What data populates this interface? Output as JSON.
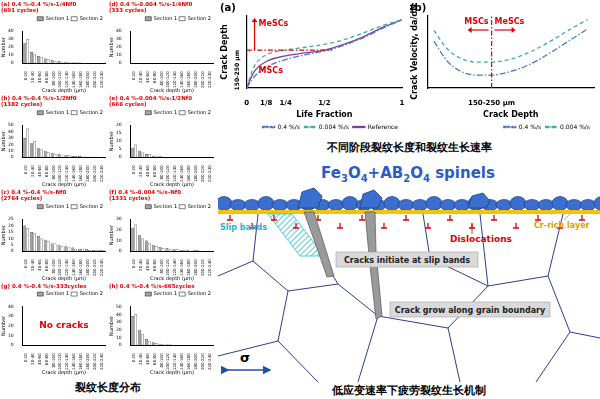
{
  "chart_data": [
    {
      "type": "bar",
      "title": "(a) 0.4 %-0.4 %/s-1/4Nf0",
      "subtitle": "(691 cycles)",
      "x_label": "Crack depth (μm)",
      "y_label": "Number",
      "categories": [
        "0-20",
        "20-40",
        "40-60",
        "60-80",
        "80-100",
        "100-120",
        "120-140",
        "140-160",
        "160-180",
        "180-200",
        "200-220",
        "220-240"
      ],
      "series": [
        {
          "name": "Section 1",
          "color": "#a6a6a6",
          "values": [
            25,
            14,
            9,
            6,
            4,
            3,
            2,
            1,
            1,
            0,
            0,
            0
          ]
        },
        {
          "name": "Section 2",
          "color": "#ffffff",
          "values": [
            30,
            12,
            8,
            5,
            3,
            2,
            1,
            1,
            0,
            0,
            0,
            0
          ]
        }
      ],
      "ylim": [
        0,
        40
      ],
      "yticks": [
        0,
        10,
        20,
        30,
        40
      ],
      "legend": "upper right"
    },
    {
      "type": "bar",
      "title": "(d) 0.4 %-0.004 %/s-1/4Nf0",
      "subtitle": "(333 cycles)",
      "x_label": "Crack depth (μm)",
      "y_label": "Number",
      "categories": [
        "0-20",
        "20-40",
        "40-60",
        "60-80",
        "80-100",
        "100-120",
        "120-140",
        "140-160",
        "160-180",
        "180-200",
        "200-220",
        "220-240"
      ],
      "series": [
        {
          "name": "Section 1",
          "color": "#a6a6a6",
          "values": [
            0,
            0,
            0,
            0,
            0,
            0,
            0,
            0,
            0,
            0,
            0,
            0
          ]
        },
        {
          "name": "Section 2",
          "color": "#ffffff",
          "values": [
            0,
            0,
            0,
            0,
            0,
            0,
            0,
            0,
            0,
            0,
            0,
            0
          ]
        }
      ],
      "ylim": [
        0,
        40
      ],
      "yticks": [
        0,
        10,
        20,
        30,
        40
      ],
      "legend": "upper right"
    },
    {
      "type": "bar",
      "title": "(b) 0.4 %-0.4 %/s-1/2Nf0",
      "subtitle": "(1382 cycles)",
      "x_label": "Crack depth (μm)",
      "y_label": "Number",
      "categories": [
        "0-20",
        "20-40",
        "40-60",
        "60-80",
        "80-100",
        "100-120",
        "120-140",
        "140-160",
        "160-180",
        "180-200",
        "200-220",
        "220-240"
      ],
      "series": [
        {
          "name": "Section 1",
          "color": "#a6a6a6",
          "values": [
            30,
            22,
            14,
            10,
            7,
            5,
            3,
            2,
            2,
            1,
            1,
            0
          ]
        },
        {
          "name": "Section 2",
          "color": "#ffffff",
          "values": [
            45,
            25,
            12,
            8,
            5,
            4,
            3,
            2,
            1,
            1,
            0,
            1
          ]
        }
      ],
      "ylim": [
        0,
        50
      ],
      "yticks": [
        0,
        10,
        20,
        30,
        40,
        50
      ],
      "legend": "upper right"
    },
    {
      "type": "bar",
      "title": "(e) 0.4 %-0.004 %/s-1/2Nf0",
      "subtitle": "(666 cycles)",
      "x_label": "Crack depth (μm)",
      "y_label": "Number",
      "categories": [
        "0-20",
        "20-40",
        "40-60",
        "60-80",
        "80-100",
        "100-120",
        "120-140",
        "140-160",
        "160-180",
        "180-200",
        "200-220",
        "220-240"
      ],
      "series": [
        {
          "name": "Section 1",
          "color": "#a6a6a6",
          "values": [
            6,
            4,
            2,
            1,
            1,
            0,
            0,
            0,
            0,
            0,
            0,
            0
          ]
        },
        {
          "name": "Section 2",
          "color": "#ffffff",
          "values": [
            8,
            3,
            2,
            1,
            0,
            0,
            0,
            0,
            0,
            0,
            0,
            0
          ]
        }
      ],
      "ylim": [
        0,
        20
      ],
      "yticks": [
        0,
        5,
        10,
        15,
        20
      ],
      "legend": "upper right"
    },
    {
      "type": "bar",
      "title": "(c) 0.4 %-0.4 %/s-Nf0",
      "subtitle": "(2764 cycles)",
      "x_label": "Crack depth (μm)",
      "y_label": "Number",
      "categories": [
        "0-20",
        "20-40",
        "40-60",
        "60-80",
        "80-100",
        "100-120",
        "120-140",
        "140-160",
        "160-180",
        "180-200",
        "200-220",
        "220-240"
      ],
      "series": [
        {
          "name": "Section 1",
          "color": "#a6a6a6",
          "values": [
            20,
            15,
            12,
            9,
            6,
            5,
            4,
            3,
            2,
            2,
            1,
            1
          ]
        },
        {
          "name": "Section 2",
          "color": "#ffffff",
          "values": [
            18,
            14,
            10,
            8,
            6,
            4,
            3,
            2,
            2,
            1,
            1,
            1
          ]
        }
      ],
      "ylim": [
        0,
        25
      ],
      "yticks": [
        0,
        5,
        10,
        15,
        20,
        25
      ],
      "legend": "upper right"
    },
    {
      "type": "bar",
      "title": "(f) 0.4 %-0.004 %/s-Nf0",
      "subtitle": "(1331 cycles)",
      "x_label": "Crack depth (μm)",
      "y_label": "Number",
      "categories": [
        "0-20",
        "20-40",
        "40-60",
        "60-80",
        "80-100",
        "100-120",
        "120-140",
        "140-160",
        "160-180",
        "180-200",
        "200-220",
        "220-240"
      ],
      "series": [
        {
          "name": "Section 1",
          "color": "#a6a6a6",
          "values": [
            22,
            15,
            10,
            6,
            4,
            3,
            2,
            1,
            1,
            1,
            0,
            0
          ]
        },
        {
          "name": "Section 2",
          "color": "#ffffff",
          "values": [
            25,
            12,
            8,
            5,
            3,
            2,
            2,
            1,
            0,
            1,
            0,
            0
          ]
        }
      ],
      "ylim": [
        0,
        30
      ],
      "yticks": [
        0,
        10,
        20,
        30
      ],
      "legend": "upper right"
    },
    {
      "type": "bar",
      "title": "(g) 0.4 %-0.4 %/s-333cycles",
      "x_label": "Crack depth (μm)",
      "y_label": "Number",
      "annotations": [
        "No cracks"
      ],
      "categories": [
        "0-20",
        "20-40",
        "40-60",
        "60-80",
        "80-100",
        "100-120",
        "120-140",
        "140-160",
        "160-180",
        "180-200",
        "200-220",
        "220-240"
      ],
      "series": [
        {
          "name": "Section 1",
          "color": "#a6a6a6",
          "values": [
            0,
            0,
            0,
            0,
            0,
            0,
            0,
            0,
            0,
            0,
            0,
            0
          ]
        },
        {
          "name": "Section 2",
          "color": "#ffffff",
          "values": [
            0,
            0,
            0,
            0,
            0,
            0,
            0,
            0,
            0,
            0,
            0,
            0
          ]
        }
      ],
      "ylim": [
        0,
        40
      ],
      "yticks": [
        0,
        10,
        20,
        30,
        40
      ],
      "legend": "upper right"
    },
    {
      "type": "bar",
      "title": "(h) 0.4 %-0.4 %/s-665cycles",
      "x_label": "Crack depth (μm)",
      "y_label": "Number",
      "categories": [
        "0-20",
        "20-40",
        "40-60",
        "60-80",
        "80-100",
        "100-120",
        "120-140",
        "140-160",
        "160-180",
        "180-200",
        "200-220",
        "220-240"
      ],
      "series": [
        {
          "name": "Section 1",
          "color": "#a6a6a6",
          "values": [
            38,
            20,
            8,
            4,
            2,
            1,
            0,
            0,
            0,
            0,
            0,
            0
          ]
        },
        {
          "name": "Section 2",
          "color": "#ffffff",
          "values": [
            40,
            15,
            6,
            3,
            1,
            1,
            0,
            0,
            0,
            0,
            0,
            0
          ]
        }
      ],
      "ylim": [
        0,
        50
      ],
      "yticks": [
        0,
        10,
        20,
        30,
        40,
        50
      ],
      "legend": "upper right"
    },
    {
      "type": "line",
      "title": "(a)",
      "x_label": "Life Fraction",
      "y_label": "Crack Depth",
      "annotations": [
        "MeSCs",
        "MSCs"
      ],
      "x": [
        0,
        0.03,
        0.06,
        0.125,
        0.25,
        0.375,
        0.5,
        0.625,
        0.75,
        0.875,
        1
      ],
      "series": [
        {
          "name": "0.4 %/s",
          "color": "#4a78c8",
          "line_style": "dashdot",
          "marker": "none",
          "values": [
            0,
            40,
            70,
            110,
            150,
            175,
            195,
            225,
            265,
            315,
            360
          ]
        },
        {
          "name": "0.004 %/s",
          "color": "#3fae9a",
          "line_style": "dashed",
          "marker": "none",
          "values": [
            0,
            80,
            130,
            175,
            200,
            215,
            230,
            255,
            290,
            330,
            360
          ]
        },
        {
          "name": "Reference",
          "color": "#7b3fa0",
          "line_style": "solid",
          "marker": "none",
          "values": [
            0,
            60,
            100,
            140,
            170,
            185,
            200,
            230,
            270,
            320,
            360
          ]
        }
      ],
      "xlim": [
        0,
        1
      ],
      "xticks": [
        0,
        {
          "value": 0.125,
          "label": "1/8"
        },
        {
          "value": 0.25,
          "label": "1/4"
        },
        {
          "value": 0.5,
          "label": "1/2"
        },
        1
      ],
      "ylim": [
        0,
        380
      ],
      "yticks": [
        {
          "value": 200,
          "label": "150-250 μm"
        }
      ],
      "legend": "lower right"
    },
    {
      "type": "line",
      "title": "(b)",
      "x_label": "Crack Depth",
      "y_label": "Crack Velocity, da/dN",
      "annotations": [
        "MSCs",
        "MeSCs"
      ],
      "x": [
        20,
        60,
        100,
        150,
        200,
        260,
        320,
        380,
        440,
        500
      ],
      "series": [
        {
          "name": "0.4 %/s",
          "color": "#4a78c8",
          "line_style": "dashdot",
          "marker": "none",
          "values": [
            6.5,
            3.8,
            2.4,
            1.8,
            1.8,
            2.3,
            3.3,
            4.8,
            6.5,
            8.2
          ]
        },
        {
          "name": "0.004 %/s",
          "color": "#3fae9a",
          "line_style": "dashed",
          "marker": "none",
          "values": [
            8,
            5.5,
            4.2,
            3.6,
            3.6,
            4.0,
            5.0,
            6.4,
            8.0,
            9.5
          ]
        }
      ],
      "xlim": [
        0,
        520
      ],
      "xticks": [
        {
          "value": 200,
          "label": "150-250 μm"
        }
      ],
      "ylim": [
        0,
        10
      ],
      "tick_labels": "x",
      "legend": "lower right"
    }
  ],
  "captions": [
    "裂纹长度分布",
    "不同阶段裂纹长度和裂纹生长速率",
    "低应变速率下疲劳裂纹生长机制"
  ],
  "diagram": {
    "title": "Fe3O4+AB2O4 spinels",
    "slip_bands": "Slip bands",
    "dislocations": "Dislocations",
    "cr_layer": "Cr-rich layer",
    "initiate": "Cracks initiate at slip bands",
    "grow": "Crack grow along grain boundary",
    "stress": "σ"
  }
}
